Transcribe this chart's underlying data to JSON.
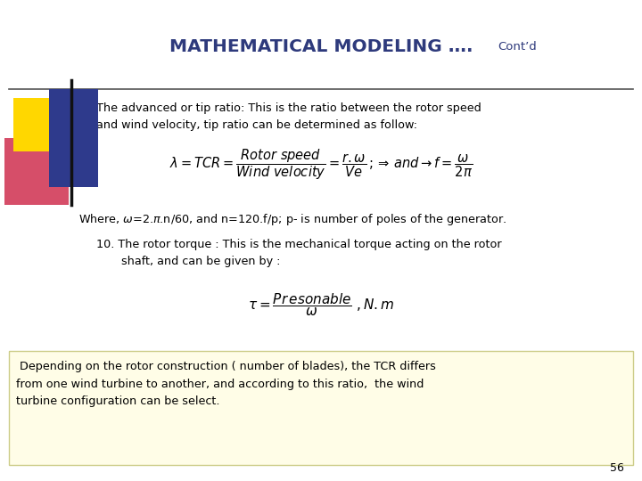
{
  "title_main": "MATHEMATICAL MODELING ….",
  "title_cont": "Cont’d",
  "bg_color": "#ffffff",
  "title_color": "#2E3A7C",
  "body_color": "#000000",
  "highlight_bg": "#FFFDE7",
  "highlight_border": "#CCCC88",
  "page_number": "56"
}
